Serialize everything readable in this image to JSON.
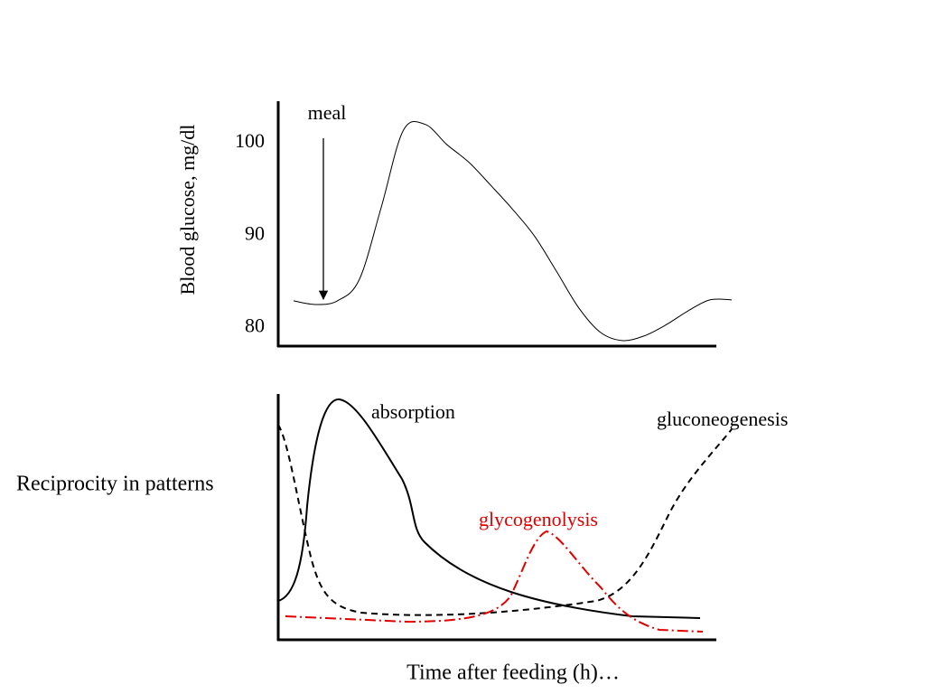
{
  "slide": {
    "side_label": "Reciprocity in patterns",
    "x_label": "Time after feeding (h)…"
  },
  "chart_data": {
    "type": "line",
    "ylabel": "Blood glucose, mg/dl",
    "annotation": "meal",
    "values": [
      82.9,
      82.5,
      82.9,
      85.2,
      93.0,
      101.3,
      102.0,
      99.8,
      97.9,
      95.4,
      92.8,
      89.9,
      86.1,
      82.2,
      79.5,
      78.6,
      79.1,
      80.3,
      81.8,
      83.0,
      83.0
    ],
    "color": "#000000",
    "ylim": [
      78,
      104.5
    ],
    "yticks": [
      80,
      90,
      100
    ]
  },
  "patterns": {
    "absorption": "absorption",
    "gluconeogenesis": "gluconeogenesis",
    "glycogenolysis": "glycogenolysis"
  }
}
